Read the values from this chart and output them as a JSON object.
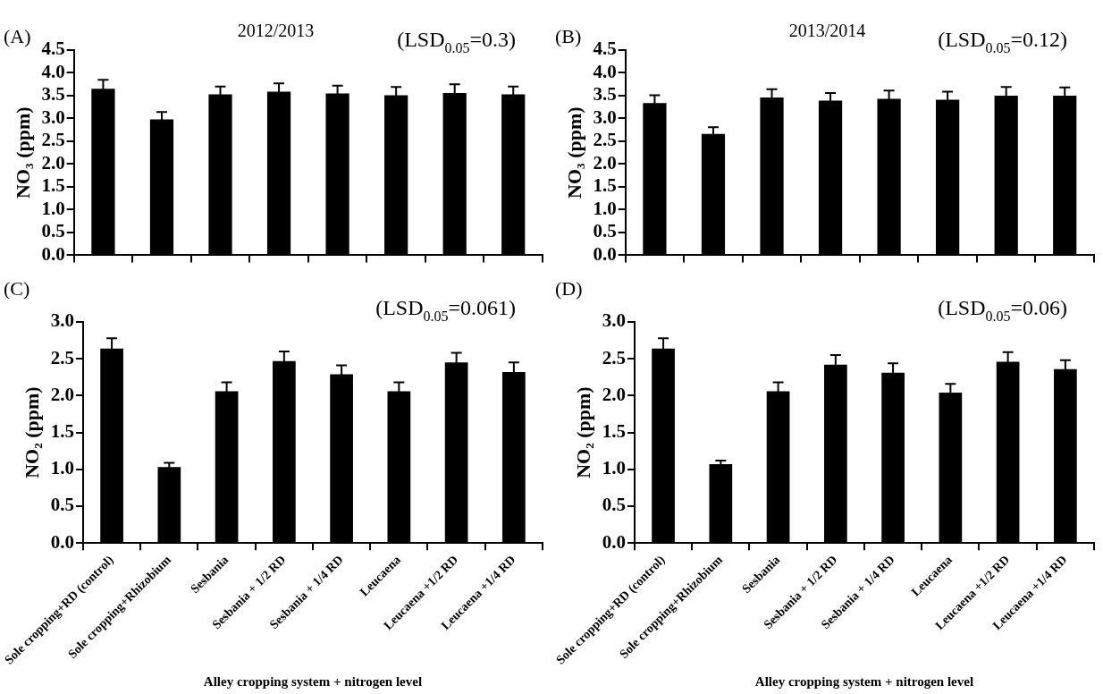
{
  "chart_data": [
    {
      "type": "bar",
      "title": "2012/2013",
      "ylabel": "NO₃ (ppm)",
      "annotations": [
        "(A)",
        "(LSD$_{0.05}$=0.3)"
      ],
      "categories": [
        null,
        null,
        null,
        null,
        null,
        null,
        null,
        null
      ],
      "values": [
        3.65,
        2.98,
        3.53,
        3.59,
        3.55,
        3.51,
        3.56,
        3.53
      ],
      "errors": [
        0.2,
        0.16,
        0.17,
        0.18,
        0.17,
        0.18,
        0.19,
        0.17
      ],
      "color": "#000000",
      "ylim": [
        0,
        4.5
      ],
      "yticks": [
        {
          "value": 0,
          "label": "0.0"
        },
        {
          "value": 0.5,
          "label": "0.5"
        },
        {
          "value": 1,
          "label": "1.0"
        },
        {
          "value": 1.5,
          "label": "1.5"
        },
        {
          "value": 2,
          "label": "2.0"
        },
        {
          "value": 2.5,
          "label": "2.5"
        },
        {
          "value": 3,
          "label": "3.0"
        },
        {
          "value": 3.5,
          "label": "3.5"
        },
        {
          "value": 4,
          "label": "4.0"
        },
        {
          "value": 4.5,
          "label": "4.5"
        }
      ],
      "tick_labels": "y",
      "grid": false,
      "legend": false
    },
    {
      "type": "bar",
      "title": "2013/2014",
      "ylabel": "NO₃ (ppm)",
      "annotations": [
        "(B)",
        "(LSD$_{0.05}$=0.12)"
      ],
      "categories": [
        null,
        null,
        null,
        null,
        null,
        null,
        null,
        null
      ],
      "values": [
        3.34,
        2.66,
        3.46,
        3.39,
        3.43,
        3.41,
        3.5,
        3.5
      ],
      "errors": [
        0.17,
        0.15,
        0.18,
        0.17,
        0.18,
        0.18,
        0.19,
        0.18
      ],
      "color": "#000000",
      "ylim": [
        0,
        4.5
      ],
      "yticks": [
        {
          "value": 0,
          "label": "0.0"
        },
        {
          "value": 0.5,
          "label": "0.5"
        },
        {
          "value": 1,
          "label": "1.0"
        },
        {
          "value": 1.5,
          "label": "1.5"
        },
        {
          "value": 2,
          "label": "2.0"
        },
        {
          "value": 2.5,
          "label": "2.5"
        },
        {
          "value": 3,
          "label": "3.0"
        },
        {
          "value": 3.5,
          "label": "3.5"
        },
        {
          "value": 4,
          "label": "4.0"
        },
        {
          "value": 4.5,
          "label": "4.5"
        }
      ],
      "tick_labels": "y",
      "grid": false,
      "legend": false
    },
    {
      "type": "bar",
      "xlabel": "Alley cropping system + nitrogen level",
      "ylabel": "NO₂ (ppm)",
      "annotations": [
        "(C)",
        "(LSD$_{0.05}$=0.061)"
      ],
      "categories": [
        "Sole cropping+RD (control)",
        "Sole cropping+Rhizobium",
        "Sesbania",
        "Sesbania + 1/2 RD",
        "Sesbania + 1/4 RD",
        "Leucaena",
        "Leucaena +1/2 RD",
        "Leucaena +1/4 RD"
      ],
      "values": [
        2.64,
        1.03,
        2.06,
        2.47,
        2.29,
        2.06,
        2.45,
        2.32
      ],
      "errors": [
        0.14,
        0.06,
        0.12,
        0.13,
        0.12,
        0.12,
        0.13,
        0.13
      ],
      "color": "#000000",
      "ylim": [
        0,
        3
      ],
      "yticks": [
        {
          "value": 0,
          "label": "0.0"
        },
        {
          "value": 0.5,
          "label": "0.5"
        },
        {
          "value": 1,
          "label": "1.0"
        },
        {
          "value": 1.5,
          "label": "1.5"
        },
        {
          "value": 2,
          "label": "2.0"
        },
        {
          "value": 2.5,
          "label": "2.5"
        },
        {
          "value": 3,
          "label": "3.0"
        }
      ],
      "grid": false,
      "legend": false
    },
    {
      "type": "bar",
      "xlabel": "Alley cropping system + nitrogen level",
      "ylabel": "NO₂ (ppm)",
      "annotations": [
        "(D)",
        "(LSD$_{0.05}$=0.06)"
      ],
      "categories": [
        "Sole cropping+RD (control)",
        "Sole cropping+Rhizobium",
        "Sesbania",
        "Sesbania + 1/2 RD",
        "Sesbania + 1/4 RD",
        "Leucaena",
        "Leucaena +1/2 RD",
        "Leucaena +1/4 RD"
      ],
      "values": [
        2.64,
        1.07,
        2.06,
        2.42,
        2.31,
        2.04,
        2.46,
        2.36
      ],
      "errors": [
        0.14,
        0.05,
        0.12,
        0.13,
        0.13,
        0.12,
        0.13,
        0.12
      ],
      "color": "#000000",
      "ylim": [
        0,
        3
      ],
      "yticks": [
        {
          "value": 0,
          "label": "0.0"
        },
        {
          "value": 0.5,
          "label": "0.5"
        },
        {
          "value": 1,
          "label": "1.0"
        },
        {
          "value": 1.5,
          "label": "1.5"
        },
        {
          "value": 2,
          "label": "2.0"
        },
        {
          "value": 2.5,
          "label": "2.5"
        },
        {
          "value": 3,
          "label": "3.0"
        }
      ],
      "grid": false,
      "legend": false
    }
  ]
}
